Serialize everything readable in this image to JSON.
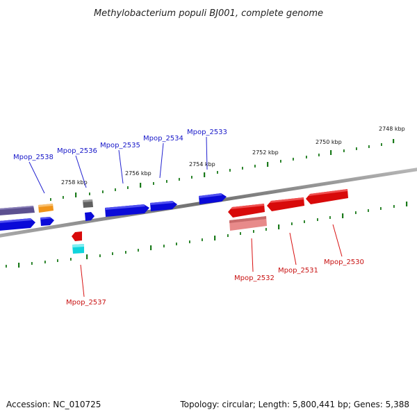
{
  "title": "Methylobacterium populi BJ001, complete genome",
  "footer": {
    "accession": "Accession: NC_010725",
    "stats": "Topology: circular; Length: 5,800,441 bp; Genes: 5,388"
  },
  "colors": {
    "forward": "#0a0ae0",
    "reverse": "#e01010",
    "backbone": "#808080",
    "tick": "#1a7a1a",
    "pseudo_gene": "#6a5c9a",
    "rna": "#f39a1e",
    "grey_gene": "#707070",
    "light_red": "#e98a8a",
    "cyan_gene": "#19d8e0"
  },
  "scale_labels": [
    "2748 kbp",
    "2750 kbp",
    "2752 kbp",
    "2754 kbp",
    "2756 kbp",
    "2758 kbp"
  ],
  "gene_labels": {
    "forward": [
      "Mpop_2538",
      "Mpop_2536",
      "Mpop_2535",
      "Mpop_2534",
      "Mpop_2533"
    ],
    "reverse": [
      "Mpop_2537",
      "Mpop_2532",
      "Mpop_2531",
      "Mpop_2530"
    ]
  }
}
